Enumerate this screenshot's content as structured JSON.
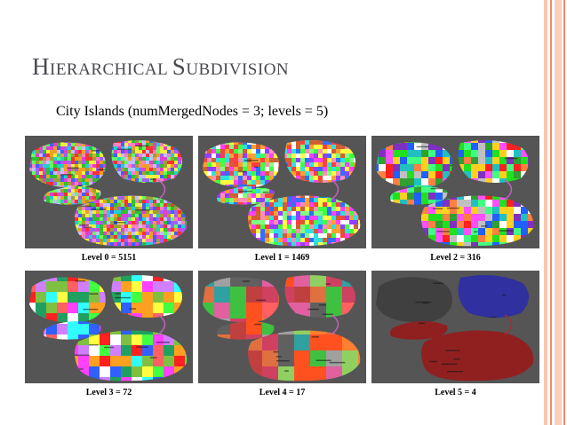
{
  "slide": {
    "title_parts": [
      {
        "cap": "H",
        "rest": "IERARCHICAL "
      },
      {
        "cap": "S",
        "rest": "UBDIVISION"
      }
    ],
    "subtitle": "City Islands (numMergedNodes = 3; levels = 5)"
  },
  "panels": [
    {
      "caption": "Level 0 = 5151",
      "palette": [
        "#e040d0",
        "#30c030",
        "#f0a020",
        "#4060ff",
        "#ff3030",
        "#20d0d0",
        "#c0c0ff",
        "#a060ff",
        "#f0f040",
        "#ff80c0",
        "#60ff60",
        "#a0a030"
      ]
    },
    {
      "caption": "Level 1 = 1469",
      "palette": [
        "#ff40ff",
        "#40ff40",
        "#ffa030",
        "#3070ff",
        "#ff4040",
        "#30e0e0",
        "#ffffff",
        "#9040ff",
        "#ffff40",
        "#ff90b0",
        "#80ff80",
        "#d06030"
      ]
    },
    {
      "caption": "Level 2 = 316",
      "palette": [
        "#ff2020",
        "#20e020",
        "#ff50ff",
        "#2060ff",
        "#ffd020",
        "#20c0c0",
        "#ffffff",
        "#8030c0",
        "#40ff80",
        "#ff8040",
        "#c0c0c0",
        "#30a030"
      ]
    },
    {
      "caption": "Level 3 = 72",
      "palette": [
        "#30ffff",
        "#ff40ff",
        "#40ff40",
        "#ff2020",
        "#ffa020",
        "#ffff40",
        "#3060ff",
        "#ffffff",
        "#20a060",
        "#d080ff",
        "#ff6060",
        "#80c040"
      ]
    },
    {
      "caption": "Level 4 = 17",
      "palette": [
        "#40c040",
        "#ff5020",
        "#c04040",
        "#e060a0",
        "#30a0a0",
        "#ff8030",
        "#a0a0a0",
        "#ff6060",
        "#90d060",
        "#d04060",
        "#e07040",
        "#606060"
      ]
    },
    {
      "caption": "Level 5 = 4",
      "palette": [
        "#404040",
        "#3030a0",
        "#902020",
        "#902020"
      ]
    }
  ],
  "colors": {
    "background": "#ffffff",
    "title": "#4a4a52",
    "panel_bg": "#555555",
    "stripe_dark": "#f08a6a",
    "stripe_light": "#f8c8b0"
  }
}
